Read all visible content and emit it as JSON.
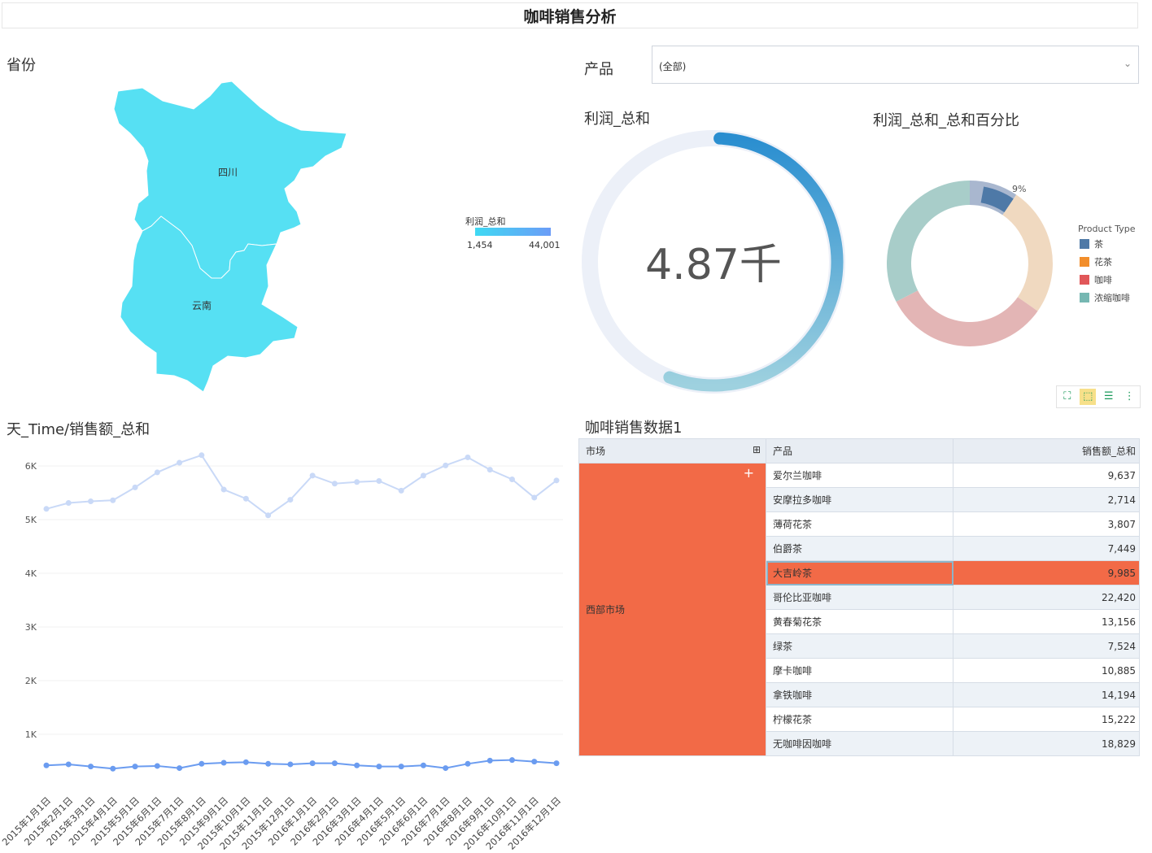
{
  "dashboard": {
    "title": "咖啡销售分析"
  },
  "map": {
    "title": "省份",
    "regions": [
      "四川",
      "云南"
    ],
    "legend": {
      "title": "利润_总和",
      "min": "1,454",
      "max": "44,001",
      "color_from": "#3fd9f3",
      "color_to": "#6b9cf7"
    },
    "fill": "#56e0f3"
  },
  "filter": {
    "label": "产品",
    "value": "(全部)"
  },
  "gauge": {
    "title": "利润_总和",
    "value": "4.87千",
    "fraction": 0.55,
    "track": "#ecf0f8"
  },
  "donut": {
    "title": "利润_总和_总和百分比",
    "legend_title": "Product Type",
    "slice_label": "9%",
    "items": [
      {
        "name": "茶",
        "color": "#4e79a7",
        "pct": 9,
        "faded": "#a9b7cf"
      },
      {
        "name": "花茶",
        "color": "#f28e2b",
        "pct": 24,
        "faded": "#f0d9c0"
      },
      {
        "name": "咖啡",
        "color": "#e15759",
        "pct": 31,
        "faded": "#e3b5b5"
      },
      {
        "name": "浓缩咖啡",
        "color": "#76b7b2",
        "pct": 31,
        "faded": "#a8cdc9"
      }
    ]
  },
  "line_chart": {
    "title": "天_Time/销售额_总和"
  },
  "chart_data": {
    "type": "line",
    "x": [
      "2015年1月1日",
      "2015年2月1日",
      "2015年3月1日",
      "2015年4月1日",
      "2015年5月1日",
      "2015年6月1日",
      "2015年7月1日",
      "2015年8月1日",
      "2015年9月1日",
      "2015年10月1日",
      "2015年11月1日",
      "2015年12月1日",
      "2016年1月1日",
      "2016年2月1日",
      "2016年3月1日",
      "2016年4月1日",
      "2016年5月1日",
      "2016年6月1日",
      "2016年7月1日",
      "2016年8月1日",
      "2016年9月1日",
      "2016年10月1日",
      "2016年11月1日",
      "2016年12月1日"
    ],
    "yticks": [
      "1K",
      "2K",
      "3K",
      "4K",
      "5K",
      "6K"
    ],
    "ylim": [
      0,
      6500
    ],
    "series": [
      {
        "color": "#c9d9f7",
        "values": [
          5200,
          5310,
          5340,
          5360,
          5600,
          5880,
          6060,
          6200,
          5560,
          5390,
          5080,
          5370,
          5820,
          5670,
          5700,
          5720,
          5540,
          5820,
          6010,
          6160,
          5930,
          5750,
          5410,
          5730
        ]
      },
      {
        "color": "#6b9cf0",
        "values": [
          420,
          440,
          400,
          360,
          400,
          410,
          370,
          450,
          470,
          480,
          450,
          440,
          460,
          460,
          420,
          400,
          400,
          420,
          370,
          450,
          510,
          520,
          490,
          460
        ]
      }
    ]
  },
  "table": {
    "title": "咖啡销售数据1",
    "headers": [
      "市场",
      "产品",
      "销售额_总和"
    ],
    "market": "西部市场",
    "rows": [
      {
        "product": "爱尔兰咖啡",
        "value": "9,637"
      },
      {
        "product": "安摩拉多咖啡",
        "value": "2,714"
      },
      {
        "product": "薄荷花茶",
        "value": "3,807"
      },
      {
        "product": "伯爵茶",
        "value": "7,449"
      },
      {
        "product": "大吉岭茶",
        "value": "9,985"
      },
      {
        "product": "哥伦比亚咖啡",
        "value": "22,420"
      },
      {
        "product": "黄春菊花茶",
        "value": "13,156"
      },
      {
        "product": "绿茶",
        "value": "7,524"
      },
      {
        "product": "摩卡咖啡",
        "value": "10,885"
      },
      {
        "product": "拿铁咖啡",
        "value": "14,194"
      },
      {
        "product": "柠檬花茶",
        "value": "15,222"
      },
      {
        "product": "无咖啡因咖啡",
        "value": "18,829"
      }
    ]
  },
  "toolbar": {
    "icons": [
      "fullscreen-icon",
      "select-icon",
      "list-icon",
      "more-icon"
    ]
  }
}
